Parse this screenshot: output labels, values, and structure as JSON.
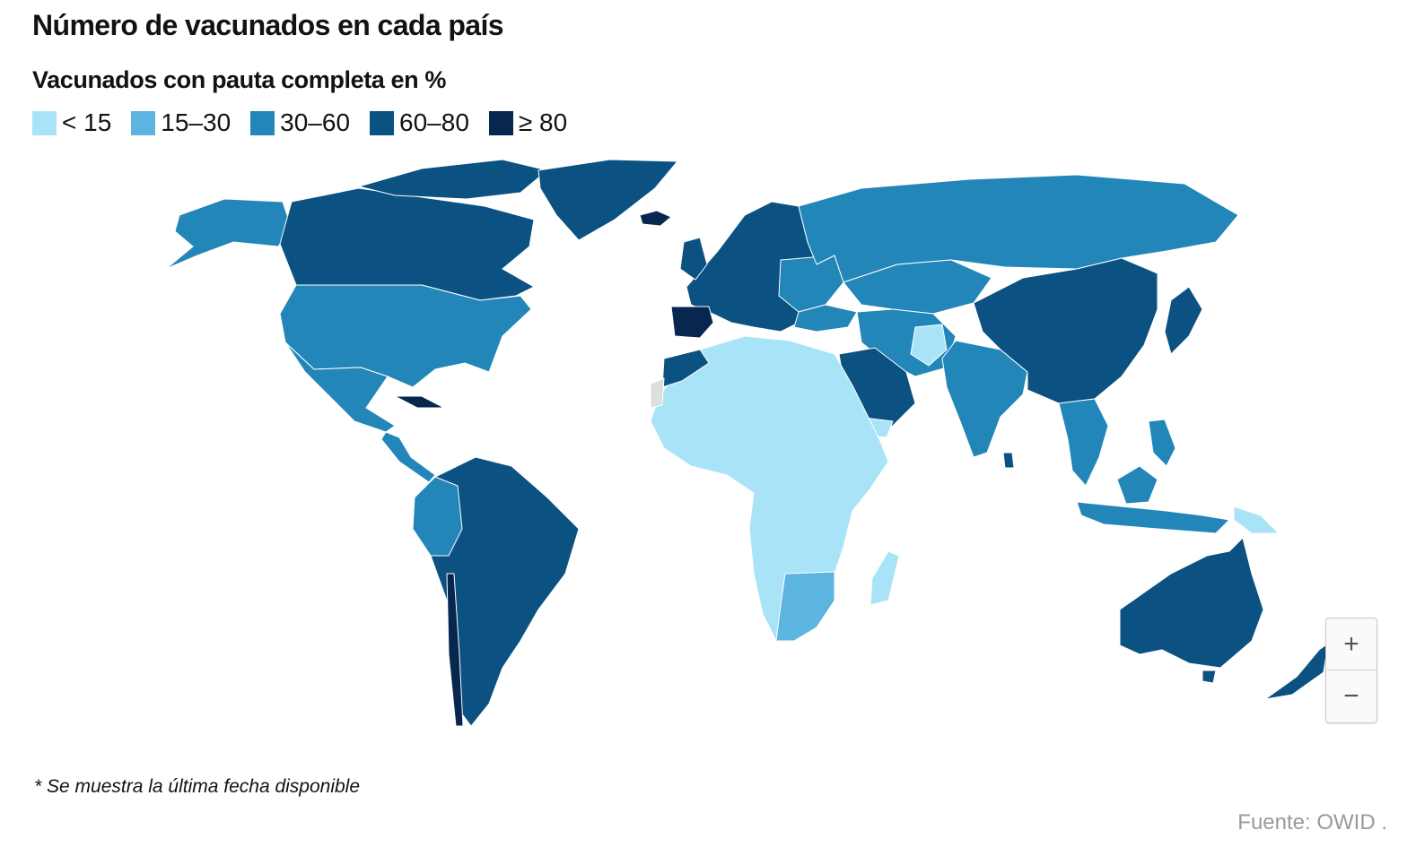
{
  "title": "Número de vacunados en cada país",
  "legend": {
    "title": "Vacunados con pauta completa en %",
    "items": [
      {
        "label": "< 15",
        "color": "#a9e3f8"
      },
      {
        "label": "15–30",
        "color": "#5bb5e0"
      },
      {
        "label": "30–60",
        "color": "#2386b8"
      },
      {
        "label": "60–80",
        "color": "#0b5182"
      },
      {
        "label": "≥ 80",
        "color": "#07274f"
      }
    ],
    "no_data_color": "#dedede"
  },
  "zoom": {
    "in_label": "+",
    "out_label": "−"
  },
  "footnote": "* Se muestra la última fecha disponible",
  "source": "Fuente: OWID ."
}
